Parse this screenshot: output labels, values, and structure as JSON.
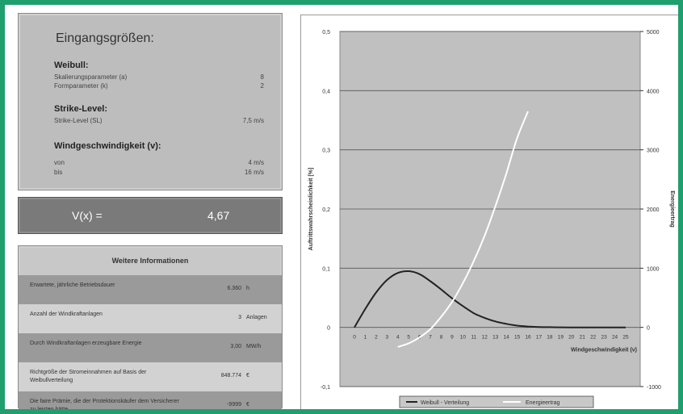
{
  "inputs": {
    "title": "Eingangsgrößen:",
    "weibull": {
      "heading": "Weibull:",
      "rows": [
        {
          "label": "Skalierungsparameter (a)",
          "value": "8"
        },
        {
          "label": "Formparameter (k)",
          "value": "2"
        }
      ]
    },
    "strike": {
      "heading": "Strike-Level:",
      "rows": [
        {
          "label": "Strike-Level (SL)",
          "value": "7,5  m/s"
        }
      ]
    },
    "wind": {
      "heading": "Windgeschwindigkeit (v):",
      "rows": [
        {
          "label": "von",
          "value": "4  m/s"
        },
        {
          "label": "bis",
          "value": "16  m/s"
        }
      ]
    }
  },
  "result": {
    "label": "V(x) =",
    "value": "4,67"
  },
  "info": {
    "heading": "Weitere Informationen",
    "rows": [
      {
        "label": "Erwartete, jährliche Betriebsdauer",
        "value": "6.360",
        "unit": "h"
      },
      {
        "label": "Anzahl der Windkraftanlagen",
        "value": "3",
        "unit": "Anlagen"
      },
      {
        "label": "Durch Windkraftanlagen erzeugbare Energie",
        "value": "3,00",
        "unit": "MW/h"
      },
      {
        "label": "Richtgröße der Stromeinnahmen auf Basis der Weibullverteilung",
        "value": "848.774",
        "unit": "€"
      },
      {
        "label": "Die faire Prämie, die der Protektionskäufer dem Versicherer zu leisten hätte",
        "value": "-9999",
        "unit": "€"
      }
    ]
  },
  "chart_data": {
    "type": "line",
    "xlabel": "Windgeschwindigkeit (v)",
    "ylabel": "Auftrittswahrscheinlichkeit [%]",
    "y2label": "Energieertrag",
    "x": [
      0,
      1,
      2,
      3,
      4,
      5,
      6,
      7,
      8,
      9,
      10,
      11,
      12,
      13,
      14,
      15,
      16,
      17,
      18,
      19,
      20,
      21,
      22,
      23,
      24,
      25
    ],
    "ylim": [
      -0.1,
      0.5
    ],
    "y2lim": [
      -1000,
      5000
    ],
    "yticks": [
      "-0,1",
      "0",
      "0,1",
      "0,2",
      "0,3",
      "0,4",
      "0,5"
    ],
    "y2ticks": [
      "-1000",
      "0",
      "1000",
      "2000",
      "3000",
      "4000",
      "5000"
    ],
    "series": [
      {
        "name": "Weibull - Verteilung",
        "color": "#222222",
        "axis": "left",
        "x": [
          0,
          1,
          2,
          3,
          4,
          5,
          6,
          7,
          8,
          9,
          10,
          11,
          12,
          13,
          14,
          15,
          16,
          17,
          18,
          19,
          20,
          21,
          22,
          23,
          24,
          25
        ],
        "values": [
          0,
          0.031,
          0.059,
          0.08,
          0.092,
          0.095,
          0.09,
          0.078,
          0.064,
          0.049,
          0.036,
          0.024,
          0.016,
          0.01,
          0.006,
          0.003,
          0.0015,
          0.0007,
          0.0003,
          0.0001,
          0,
          0,
          0,
          0,
          0,
          0
        ]
      },
      {
        "name": "Energieertrag",
        "color": "#ffffff",
        "axis": "right",
        "x": [
          4,
          5,
          6,
          7,
          8,
          9,
          10,
          11,
          12,
          13,
          14,
          15,
          16
        ],
        "values": [
          -330,
          -270,
          -170,
          -30,
          180,
          430,
          750,
          1120,
          1550,
          2050,
          2600,
          3200,
          3650
        ]
      }
    ],
    "grid": true,
    "legend": "bottom"
  }
}
